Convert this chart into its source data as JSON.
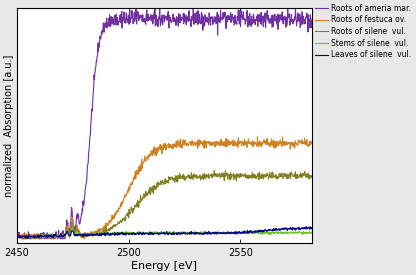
{
  "xlabel": "Energy [eV]",
  "ylabel": "normalized  Absorption [a.u.]",
  "xlim": [
    2450,
    2582
  ],
  "ylim": [
    -0.03,
    1.05
  ],
  "xticks": [
    2450,
    2500,
    2550
  ],
  "yticks": [],
  "legend_entries": [
    "Roots of am​eria mar.",
    "Roots of festuca ov.",
    "Roots of silene  vul.",
    "Stems of silene  vul.",
    "Leaves of silene  vul."
  ],
  "line_colors": [
    "#7030a0",
    "#d08020",
    "#808020",
    "#70c020",
    "#00008b"
  ],
  "background_color": "#ffffff",
  "fig_facecolor": "#e8e8e8"
}
